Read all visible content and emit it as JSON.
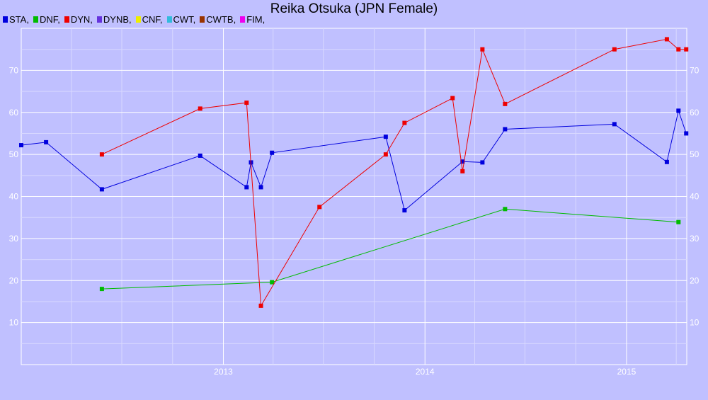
{
  "chart_data": {
    "type": "line",
    "title": "Reika Otsuka (JPN Female)",
    "xlabel": "",
    "ylabel": "",
    "ylim": [
      0,
      80
    ],
    "xlim": [
      "2012-01-01",
      "2015-04-20"
    ],
    "grid": true,
    "legend_position": "top-left",
    "y_ticks": [
      10,
      20,
      30,
      40,
      50,
      60,
      70
    ],
    "x_ticks": [
      {
        "label": "2013",
        "date": "2013-01-01"
      },
      {
        "label": "2014",
        "date": "2014-01-01"
      },
      {
        "label": "2015",
        "date": "2015-01-01"
      }
    ],
    "legend": [
      {
        "label": "STA,",
        "color": "#0000dd"
      },
      {
        "label": "DNF,",
        "color": "#00bb00"
      },
      {
        "label": "DYN,",
        "color": "#ee0000"
      },
      {
        "label": "DYNB,",
        "color": "#6633dd"
      },
      {
        "label": "CNF,",
        "color": "#eeee00"
      },
      {
        "label": "CWT,",
        "color": "#33bbdd"
      },
      {
        "label": "CWTB,",
        "color": "#993300"
      },
      {
        "label": "FIM,",
        "color": "#ee00ee"
      }
    ],
    "series": [
      {
        "name": "STA",
        "color": "#0000dd",
        "points": [
          {
            "x": "2012-01-01",
            "y": 52.2
          },
          {
            "x": "2012-02-15",
            "y": 52.9
          },
          {
            "x": "2012-05-26",
            "y": 41.7
          },
          {
            "x": "2012-11-20",
            "y": 49.7
          },
          {
            "x": "2013-02-12",
            "y": 42.2
          },
          {
            "x": "2013-02-20",
            "y": 48.1
          },
          {
            "x": "2013-03-10",
            "y": 42.2
          },
          {
            "x": "2013-03-30",
            "y": 50.4
          },
          {
            "x": "2013-10-22",
            "y": 54.2
          },
          {
            "x": "2013-11-25",
            "y": 36.7
          },
          {
            "x": "2014-03-10",
            "y": 48.3
          },
          {
            "x": "2014-04-15",
            "y": 48.1
          },
          {
            "x": "2014-05-26",
            "y": 56.0
          },
          {
            "x": "2014-12-10",
            "y": 57.2
          },
          {
            "x": "2015-03-15",
            "y": 48.2
          },
          {
            "x": "2015-04-05",
            "y": 60.4
          },
          {
            "x": "2015-04-19",
            "y": 55.0
          }
        ]
      },
      {
        "name": "DNF",
        "color": "#00bb00",
        "points": [
          {
            "x": "2012-05-26",
            "y": 18.0
          },
          {
            "x": "2013-03-30",
            "y": 19.6
          },
          {
            "x": "2014-05-26",
            "y": 37.0
          },
          {
            "x": "2015-04-05",
            "y": 33.9
          }
        ]
      },
      {
        "name": "DYN",
        "color": "#ee0000",
        "points": [
          {
            "x": "2012-05-26",
            "y": 50.0
          },
          {
            "x": "2012-11-20",
            "y": 60.9
          },
          {
            "x": "2013-02-12",
            "y": 62.3
          },
          {
            "x": "2013-03-10",
            "y": 14.0
          },
          {
            "x": "2013-06-24",
            "y": 37.5
          },
          {
            "x": "2013-10-22",
            "y": 50.0
          },
          {
            "x": "2013-11-25",
            "y": 57.5
          },
          {
            "x": "2014-02-20",
            "y": 63.4
          },
          {
            "x": "2014-03-10",
            "y": 46.0
          },
          {
            "x": "2014-04-15",
            "y": 75.0
          },
          {
            "x": "2014-05-26",
            "y": 62.0
          },
          {
            "x": "2014-12-10",
            "y": 75.0
          },
          {
            "x": "2015-03-15",
            "y": 77.4
          },
          {
            "x": "2015-04-05",
            "y": 75.0
          },
          {
            "x": "2015-04-19",
            "y": 75.0
          }
        ]
      }
    ]
  }
}
